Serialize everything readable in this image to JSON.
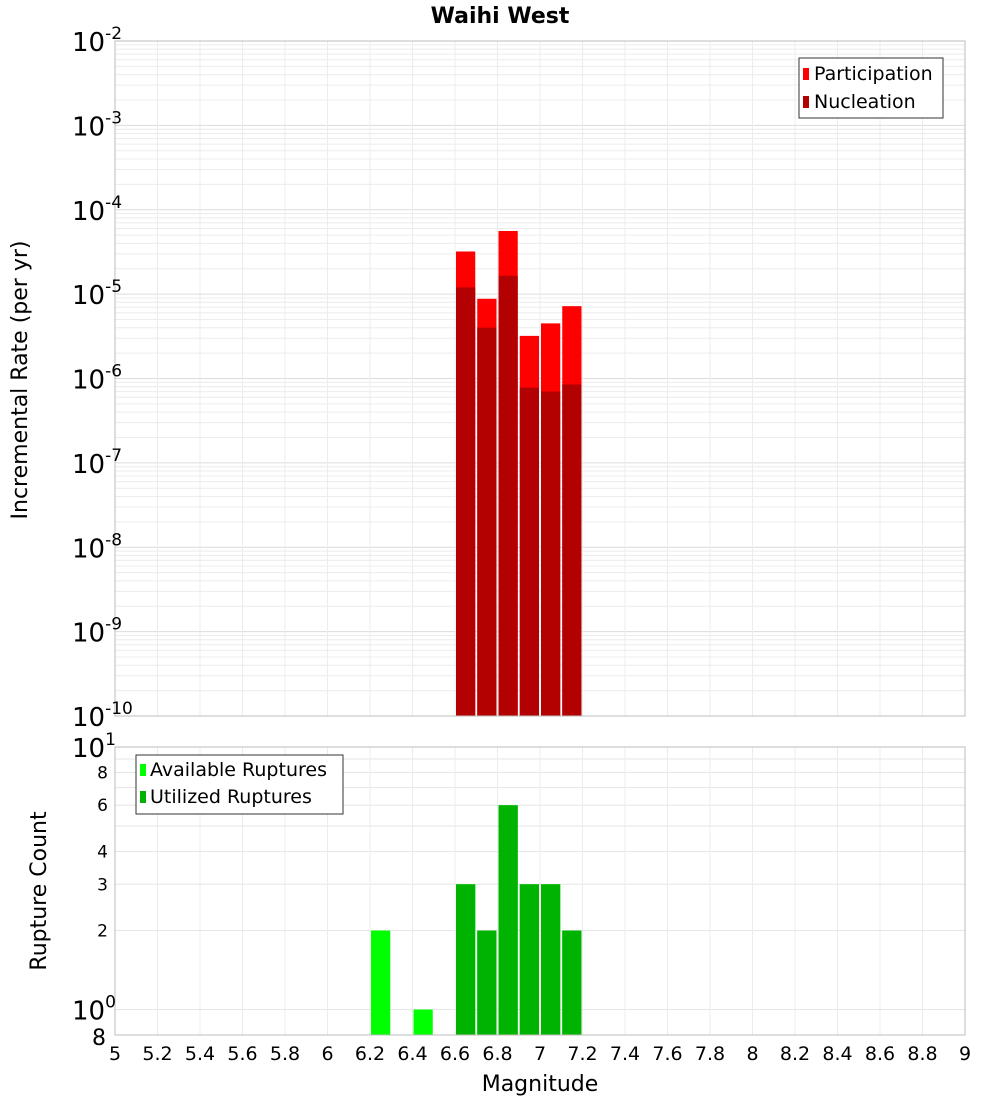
{
  "chart_data": [
    {
      "type": "bar",
      "title": "Waihi West",
      "xlabel": "",
      "ylabel": "Incremental Rate (per yr)",
      "yscale": "log",
      "ylim": [
        1e-10,
        0.01
      ],
      "xlim": [
        5,
        9
      ],
      "bar_width": 0.1,
      "grid": true,
      "legend_position": "top-right",
      "y_ticks": [
        {
          "base": "10",
          "exp": "-10"
        },
        {
          "base": "10",
          "exp": "-9"
        },
        {
          "base": "10",
          "exp": "-8"
        },
        {
          "base": "10",
          "exp": "-7"
        },
        {
          "base": "10",
          "exp": "-6"
        },
        {
          "base": "10",
          "exp": "-5"
        },
        {
          "base": "10",
          "exp": "-4"
        },
        {
          "base": "10",
          "exp": "-3"
        },
        {
          "base": "10",
          "exp": "-2"
        }
      ],
      "x": [
        6.65,
        6.75,
        6.85,
        6.95,
        7.05,
        7.15
      ],
      "series": [
        {
          "name": "Participation",
          "color": "#ff0000",
          "values": [
            3.2e-05,
            8.8e-06,
            5.6e-05,
            3.2e-06,
            4.5e-06,
            7.2e-06
          ]
        },
        {
          "name": "Nucleation",
          "color": "#b30000",
          "values": [
            1.2e-05,
            4e-06,
            1.65e-05,
            7.8e-07,
            7e-07,
            8.5e-07
          ]
        }
      ]
    },
    {
      "type": "bar",
      "xlabel": "Magnitude",
      "ylabel": "Rupture Count",
      "yscale": "log",
      "ylim": [
        0.8,
        10
      ],
      "xlim": [
        5,
        9
      ],
      "bar_width": 0.1,
      "grid": true,
      "legend_position": "top-left",
      "x_ticks": [
        "5",
        "5.2",
        "5.4",
        "5.6",
        "5.8",
        "6",
        "6.2",
        "6.4",
        "6.6",
        "6.8",
        "7",
        "7.2",
        "7.4",
        "7.6",
        "7.8",
        "8",
        "8.2",
        "8.4",
        "8.6",
        "8.8",
        "9"
      ],
      "y_ticks_major": [
        {
          "base": "10",
          "exp": "0"
        },
        {
          "base": "10",
          "exp": "1"
        }
      ],
      "y_ticks_minor": [
        "2",
        "3",
        "4",
        "6",
        "8",
        "8"
      ],
      "x": [
        6.25,
        6.45,
        6.65,
        6.75,
        6.85,
        6.95,
        7.05,
        7.15
      ],
      "series": [
        {
          "name": "Available Ruptures",
          "color": "#00ff00",
          "values": [
            2,
            1,
            3,
            2,
            6,
            3,
            3,
            2
          ]
        },
        {
          "name": "Utilized Ruptures",
          "color": "#00b300",
          "values": [
            0,
            0,
            3,
            2,
            6,
            3,
            3,
            2
          ]
        }
      ]
    }
  ]
}
